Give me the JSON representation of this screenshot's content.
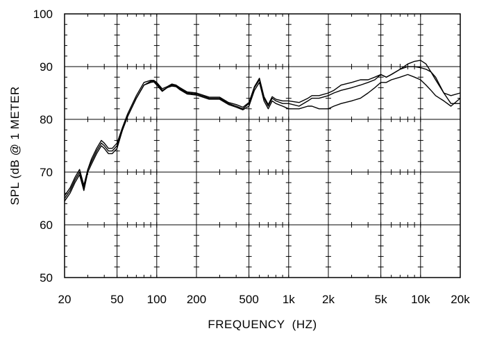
{
  "chart_data": {
    "type": "line",
    "title": "",
    "xlabel": "FREQUENCY  (HZ)",
    "ylabel": "SPL (dB @ 1 METER",
    "xscale": "log",
    "xlim": [
      20,
      20000
    ],
    "ylim": [
      50,
      100
    ],
    "grid": true,
    "legend": "none",
    "line_color": "#000000",
    "x_ticks": [
      {
        "value": 20,
        "label": "20"
      },
      {
        "value": 50,
        "label": "50"
      },
      {
        "value": 100,
        "label": "100"
      },
      {
        "value": 200,
        "label": "200"
      },
      {
        "value": 500,
        "label": "500"
      },
      {
        "value": 1000,
        "label": "1k"
      },
      {
        "value": 2000,
        "label": "2k"
      },
      {
        "value": 5000,
        "label": "5k"
      },
      {
        "value": 10000,
        "label": "10k"
      },
      {
        "value": 20000,
        "label": "20k"
      }
    ],
    "y_ticks": [
      {
        "value": 50,
        "label": "50"
      },
      {
        "value": 60,
        "label": "60"
      },
      {
        "value": 70,
        "label": "70"
      },
      {
        "value": 80,
        "label": "80"
      },
      {
        "value": 90,
        "label": "90"
      },
      {
        "value": 100,
        "label": "100"
      }
    ],
    "series": [
      {
        "x": [
          20,
          22,
          24,
          26,
          28,
          30,
          32,
          35,
          38,
          40,
          43,
          46,
          50,
          55,
          60,
          70,
          80,
          90,
          95,
          100,
          110,
          120,
          130,
          140,
          150,
          170,
          200,
          250,
          300,
          350,
          400,
          450,
          500,
          550,
          600,
          650,
          700,
          750,
          800,
          900,
          1000,
          1200,
          1400,
          1500,
          1700,
          2000,
          2200,
          2500,
          3000,
          3500,
          4000,
          4500,
          5000,
          5500,
          6000,
          7000,
          8000,
          9000,
          10000,
          11000,
          12000,
          13000,
          15000,
          17000,
          20000
        ],
        "values": [
          65,
          66.5,
          68.5,
          70,
          67,
          70.5,
          72,
          74,
          75.5,
          75,
          74,
          74,
          75,
          78,
          80.5,
          84,
          86.5,
          87.2,
          87.3,
          86.8,
          85.5,
          86,
          86.5,
          86.3,
          85.8,
          85,
          84.8,
          84,
          84,
          83,
          82.5,
          82,
          83,
          86,
          87.5,
          84,
          82.5,
          84,
          83.5,
          83,
          83,
          82.5,
          83.5,
          84,
          84,
          84.5,
          85,
          85.5,
          86,
          86.5,
          87,
          87.5,
          88.5,
          88,
          88.5,
          89.5,
          90.5,
          91,
          91.2,
          90.5,
          89,
          87.5,
          85,
          84.5,
          85
        ]
      },
      {
        "x": [
          20,
          22,
          24,
          26,
          28,
          30,
          32,
          35,
          38,
          40,
          43,
          46,
          50,
          55,
          60,
          70,
          80,
          90,
          95,
          100,
          110,
          120,
          130,
          140,
          150,
          170,
          200,
          250,
          300,
          350,
          400,
          450,
          500,
          550,
          600,
          650,
          700,
          750,
          800,
          900,
          1000,
          1200,
          1400,
          1500,
          1700,
          2000,
          2200,
          2500,
          3000,
          3500,
          4000,
          4500,
          5000,
          5500,
          6000,
          7000,
          8000,
          9000,
          10000,
          11000,
          12000,
          13000,
          15000,
          17000,
          20000
        ],
        "values": [
          64.5,
          66,
          68,
          69.5,
          66.5,
          70,
          71.5,
          73.5,
          75,
          74.5,
          73.5,
          73.5,
          74.5,
          78,
          80.5,
          84,
          86.5,
          87,
          87.1,
          86.5,
          85.3,
          86,
          86.3,
          86.2,
          85.6,
          84.8,
          84.6,
          83.8,
          83.8,
          82.8,
          82.3,
          81.8,
          82.5,
          85.5,
          87,
          83.5,
          82,
          83.5,
          83,
          82.5,
          82,
          82,
          82.5,
          82.5,
          82,
          82,
          82.5,
          83,
          83.5,
          84,
          85,
          86,
          87,
          87,
          87.5,
          88,
          88.5,
          88,
          87.5,
          86.5,
          85.5,
          84.5,
          83.5,
          82.5,
          84
        ]
      },
      {
        "x": [
          20,
          22,
          24,
          26,
          28,
          30,
          32,
          35,
          38,
          40,
          43,
          46,
          50,
          55,
          60,
          70,
          80,
          90,
          95,
          100,
          110,
          120,
          130,
          140,
          150,
          170,
          200,
          250,
          300,
          350,
          400,
          450,
          500,
          550,
          600,
          650,
          700,
          750,
          800,
          900,
          1000,
          1200,
          1400,
          1500,
          1700,
          2000,
          2200,
          2500,
          3000,
          3500,
          4000,
          4500,
          5000,
          5500,
          6000,
          7000,
          8000,
          9000,
          10000,
          11000,
          12000,
          13000,
          15000,
          17000,
          20000
        ],
        "values": [
          65.5,
          67,
          69,
          70.5,
          67.5,
          70.5,
          72.5,
          74.5,
          76,
          75.5,
          74.5,
          74.5,
          75.5,
          78.5,
          81,
          84.5,
          87,
          87.4,
          87.4,
          87,
          85.8,
          86.2,
          86.7,
          86.5,
          86,
          85.2,
          85,
          84.2,
          84.2,
          83.2,
          82.8,
          82.3,
          83.2,
          86.2,
          87.8,
          84.3,
          82.8,
          84.3,
          83.8,
          83.5,
          83.5,
          83.2,
          84,
          84.5,
          84.5,
          85,
          85.5,
          86.5,
          87,
          87.5,
          87.5,
          88,
          88.5,
          88,
          88.5,
          89.5,
          90,
          90,
          89.8,
          89.5,
          89,
          88,
          85,
          83,
          83
        ]
      }
    ]
  }
}
